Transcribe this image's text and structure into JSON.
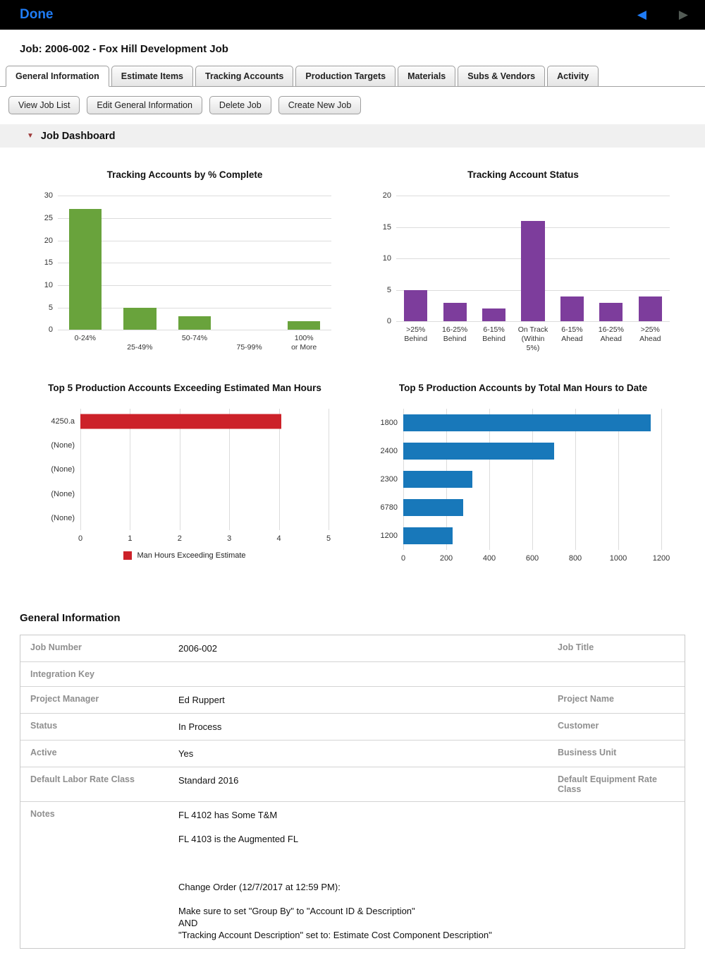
{
  "topbar": {
    "done_label": "Done",
    "icons": {
      "back": "◀",
      "forward": "▶"
    }
  },
  "icons": {
    "collapse_triangle": "▼"
  },
  "page": {
    "title": "Job: 2006-002 - Fox Hill Development Job"
  },
  "tabs": [
    {
      "label": "General Information",
      "active": true
    },
    {
      "label": "Estimate Items",
      "active": false
    },
    {
      "label": "Tracking Accounts",
      "active": false
    },
    {
      "label": "Production Targets",
      "active": false
    },
    {
      "label": "Materials",
      "active": false
    },
    {
      "label": "Subs & Vendors",
      "active": false
    },
    {
      "label": "Activity",
      "active": false
    }
  ],
  "actions": [
    "View Job List",
    "Edit General Information",
    "Delete Job",
    "Create New Job"
  ],
  "dashboard": {
    "header": "Job Dashboard"
  },
  "chart_data": [
    {
      "type": "bar",
      "title": "Tracking Accounts by % Complete",
      "categories": [
        "0-24%",
        "25-49%",
        "50-74%",
        "75-99%",
        "100% or More"
      ],
      "values": [
        27,
        5,
        3,
        0,
        2
      ],
      "ylim": [
        0,
        30
      ],
      "ytick_step": 5,
      "grid": true,
      "color": "#69a33c",
      "stagger_xlabels": true
    },
    {
      "type": "bar",
      "title": "Tracking Account Status",
      "categories": [
        ">25%\nBehind",
        "16-25%\nBehind",
        "6-15%\nBehind",
        "On Track\n(Within\n5%)",
        "6-15%\nAhead",
        "16-25%\nAhead",
        ">25%\nAhead"
      ],
      "values": [
        5,
        3,
        2,
        16,
        4,
        3,
        4
      ],
      "ylim": [
        0,
        20
      ],
      "ytick_step": 5,
      "grid": true,
      "color": "#7d3d9c"
    },
    {
      "type": "hbar",
      "title": "Top 5 Production Accounts Exceeding Estimated Man Hours",
      "categories": [
        "4250.a",
        "(None)",
        "(None)",
        "(None)",
        "(None)"
      ],
      "values": [
        4.05,
        0,
        0,
        0,
        0
      ],
      "xlim": [
        0,
        5
      ],
      "xtick_step": 1,
      "grid": true,
      "color": "#cc2129",
      "legend": "Man Hours Exceeding Estimate",
      "legend_position": "bottom"
    },
    {
      "type": "hbar",
      "title": "Top 5 Production Accounts by Total Man Hours to Date",
      "categories": [
        "1800",
        "2400",
        "2300",
        "6780",
        "1200"
      ],
      "values": [
        1150,
        700,
        320,
        280,
        230
      ],
      "xlim": [
        0,
        1200
      ],
      "xtick_step": 200,
      "grid": true,
      "color": "#1878ba"
    }
  ],
  "general_info": {
    "heading": "General Information",
    "rows": [
      {
        "label": "Job Number",
        "value": "2006-002",
        "label2": "Job Title",
        "value2": ""
      },
      {
        "label": "Integration Key",
        "value": "",
        "label2": "",
        "value2": ""
      },
      {
        "label": "Project Manager",
        "value": "Ed Ruppert",
        "label2": "Project Name",
        "value2": ""
      },
      {
        "label": "Status",
        "value": "In Process",
        "label2": "Customer",
        "value2": ""
      },
      {
        "label": "Active",
        "value": "Yes",
        "label2": "Business Unit",
        "value2": ""
      },
      {
        "label": "Default Labor Rate Class",
        "value": "Standard 2016",
        "label2": "Default Equipment Rate Class",
        "value2": ""
      },
      {
        "label": "Notes",
        "value": "FL 4102 has Some T&M\n\nFL 4103 is the Augmented FL\n\n\n\nChange Order (12/7/2017 at 12:59 PM):\n\nMake sure to set \"Group By\" to \"Account ID & Description\"\nAND\n\"Tracking Account Description\" set to: Estimate Cost Component Description\"",
        "label2": "",
        "value2": ""
      }
    ]
  }
}
